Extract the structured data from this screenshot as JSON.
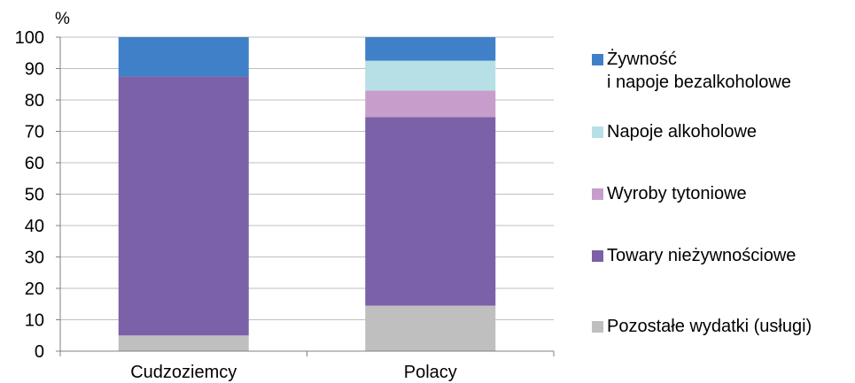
{
  "chart_data": {
    "type": "bar",
    "stacked": true,
    "ylabel": "%",
    "ylim": [
      0,
      100
    ],
    "yticks": [
      0,
      10,
      20,
      30,
      40,
      50,
      60,
      70,
      80,
      90,
      100
    ],
    "grid": true,
    "legend_position": "right",
    "categories": [
      "Cudzoziemcy",
      "Polacy"
    ],
    "series": [
      {
        "name": "Pozostałe wydatki (usługi)",
        "color": "#bfbfbf",
        "values": [
          5,
          14.5
        ]
      },
      {
        "name": "Towary nieżywnościowe",
        "color": "#7a61a8",
        "values": [
          82.5,
          60
        ]
      },
      {
        "name": "Wyroby tytoniowe",
        "color": "#c79ecb",
        "values": [
          0,
          8.5
        ]
      },
      {
        "name": "Napoje alkoholowe",
        "color": "#b6e0e6",
        "values": [
          0,
          9.5
        ]
      },
      {
        "name": "Żywność i napoje bezalkoholowe",
        "color": "#3f80c8",
        "values": [
          12.5,
          7.5
        ]
      }
    ]
  },
  "legend": [
    {
      "line1": "Żywność",
      "line2": "i napoje bezalkoholowe",
      "color": "#3f80c8"
    },
    {
      "line1": "Napoje alkoholowe",
      "color": "#b6e0e6"
    },
    {
      "line1": "Wyroby tytoniowe",
      "color": "#c79ecb"
    },
    {
      "line1": "Towary nieżywnościowe",
      "color": "#7a61a8"
    },
    {
      "line1": "Pozostałe wydatki (usługi)",
      "color": "#bfbfbf"
    }
  ]
}
